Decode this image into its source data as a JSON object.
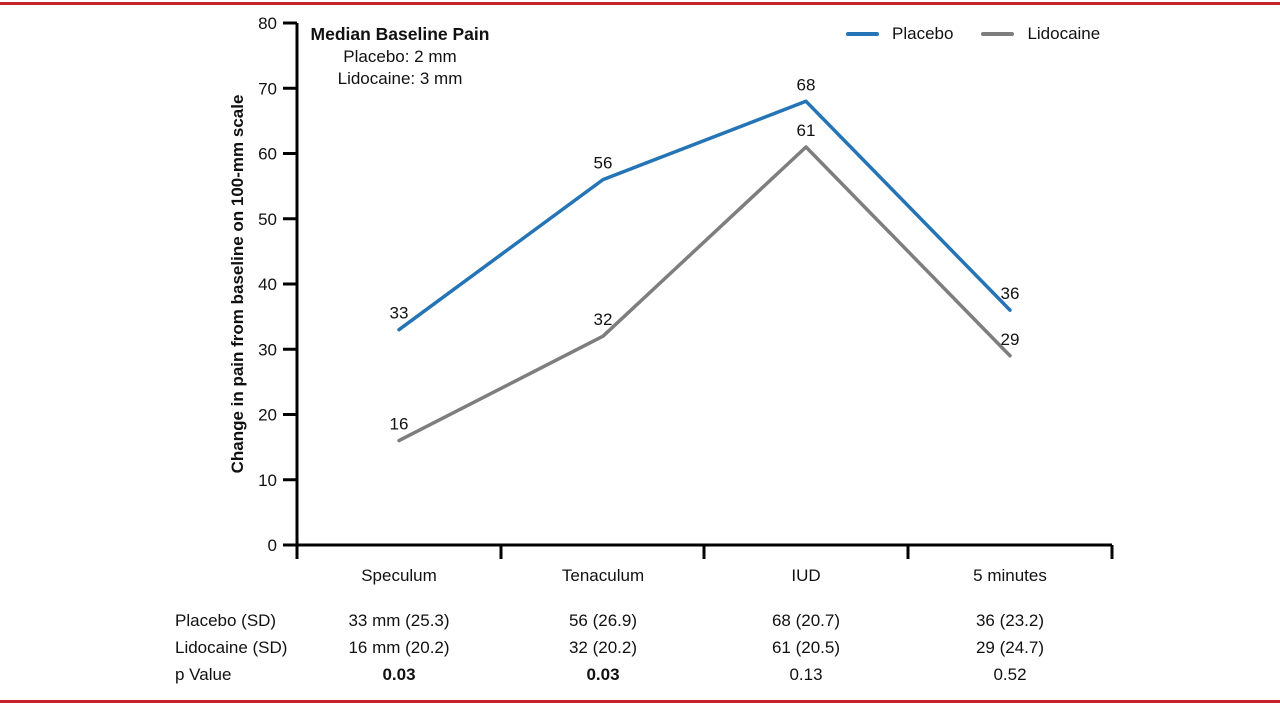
{
  "page": {
    "accent_rule_color": "#c4232e",
    "background": "#ffffff"
  },
  "chart_data": {
    "type": "line",
    "title": "",
    "xlabel": "",
    "ylabel": "Change in pain from baseline on 100-mm scale",
    "categories": [
      "Speculum",
      "Tenaculum",
      "IUD",
      "5 minutes"
    ],
    "series": [
      {
        "name": "Placebo",
        "color": "#2474b6",
        "values": [
          33,
          56,
          68,
          36
        ]
      },
      {
        "name": "Lidocaine",
        "color": "#7e7e7e",
        "values": [
          16,
          32,
          61,
          29
        ]
      }
    ],
    "ylim": [
      0,
      80
    ],
    "ytick_step": 10,
    "grid": false,
    "legend_position": "top-right",
    "annotation": {
      "title": "Median Baseline Pain",
      "line1": "Placebo: 2 mm",
      "line2": "Lidocaine: 3 mm"
    }
  },
  "stats_table": {
    "rows": [
      {
        "label": "Placebo (SD)",
        "cells": [
          "33 mm (25.3)",
          "56 (26.9)",
          "68 (20.7)",
          "36 (23.2)"
        ],
        "bold": [
          false,
          false,
          false,
          false
        ]
      },
      {
        "label": "Lidocaine (SD)",
        "cells": [
          "16 mm (20.2)",
          "32 (20.2)",
          "61 (20.5)",
          "29 (24.7)"
        ],
        "bold": [
          false,
          false,
          false,
          false
        ]
      },
      {
        "label": "p Value",
        "cells": [
          "0.03",
          "0.03",
          "0.13",
          "0.52"
        ],
        "bold": [
          true,
          true,
          false,
          false
        ]
      }
    ]
  }
}
